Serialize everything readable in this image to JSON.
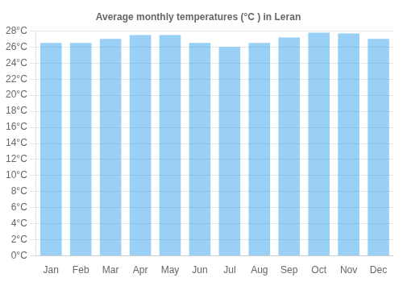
{
  "chart_data": {
    "type": "bar",
    "title": "Average monthly temperatures (°C ) in Leran",
    "categories": [
      "Jan",
      "Feb",
      "Mar",
      "Apr",
      "May",
      "Jun",
      "Jul",
      "Aug",
      "Sep",
      "Oct",
      "Nov",
      "Dec"
    ],
    "values": [
      26.5,
      26.5,
      27.0,
      27.5,
      27.5,
      26.5,
      26.0,
      26.5,
      27.2,
      27.8,
      27.7,
      27.0
    ],
    "ylim": [
      0,
      28
    ],
    "yticks": [
      {
        "value": 0,
        "label": "0°C"
      },
      {
        "value": 2,
        "label": "2°C"
      },
      {
        "value": 4,
        "label": "4°C"
      },
      {
        "value": 6,
        "label": "6°C"
      },
      {
        "value": 8,
        "label": "8°C"
      },
      {
        "value": 10,
        "label": "10°C"
      },
      {
        "value": 12,
        "label": "12°C"
      },
      {
        "value": 14,
        "label": "14°C"
      },
      {
        "value": 16,
        "label": "16°C"
      },
      {
        "value": 18,
        "label": "18°C"
      },
      {
        "value": 20,
        "label": "20°C"
      },
      {
        "value": 22,
        "label": "22°C"
      },
      {
        "value": 24,
        "label": "24°C"
      },
      {
        "value": 26,
        "label": "26°C"
      },
      {
        "value": 28,
        "label": "28°C"
      }
    ],
    "grid": true
  }
}
